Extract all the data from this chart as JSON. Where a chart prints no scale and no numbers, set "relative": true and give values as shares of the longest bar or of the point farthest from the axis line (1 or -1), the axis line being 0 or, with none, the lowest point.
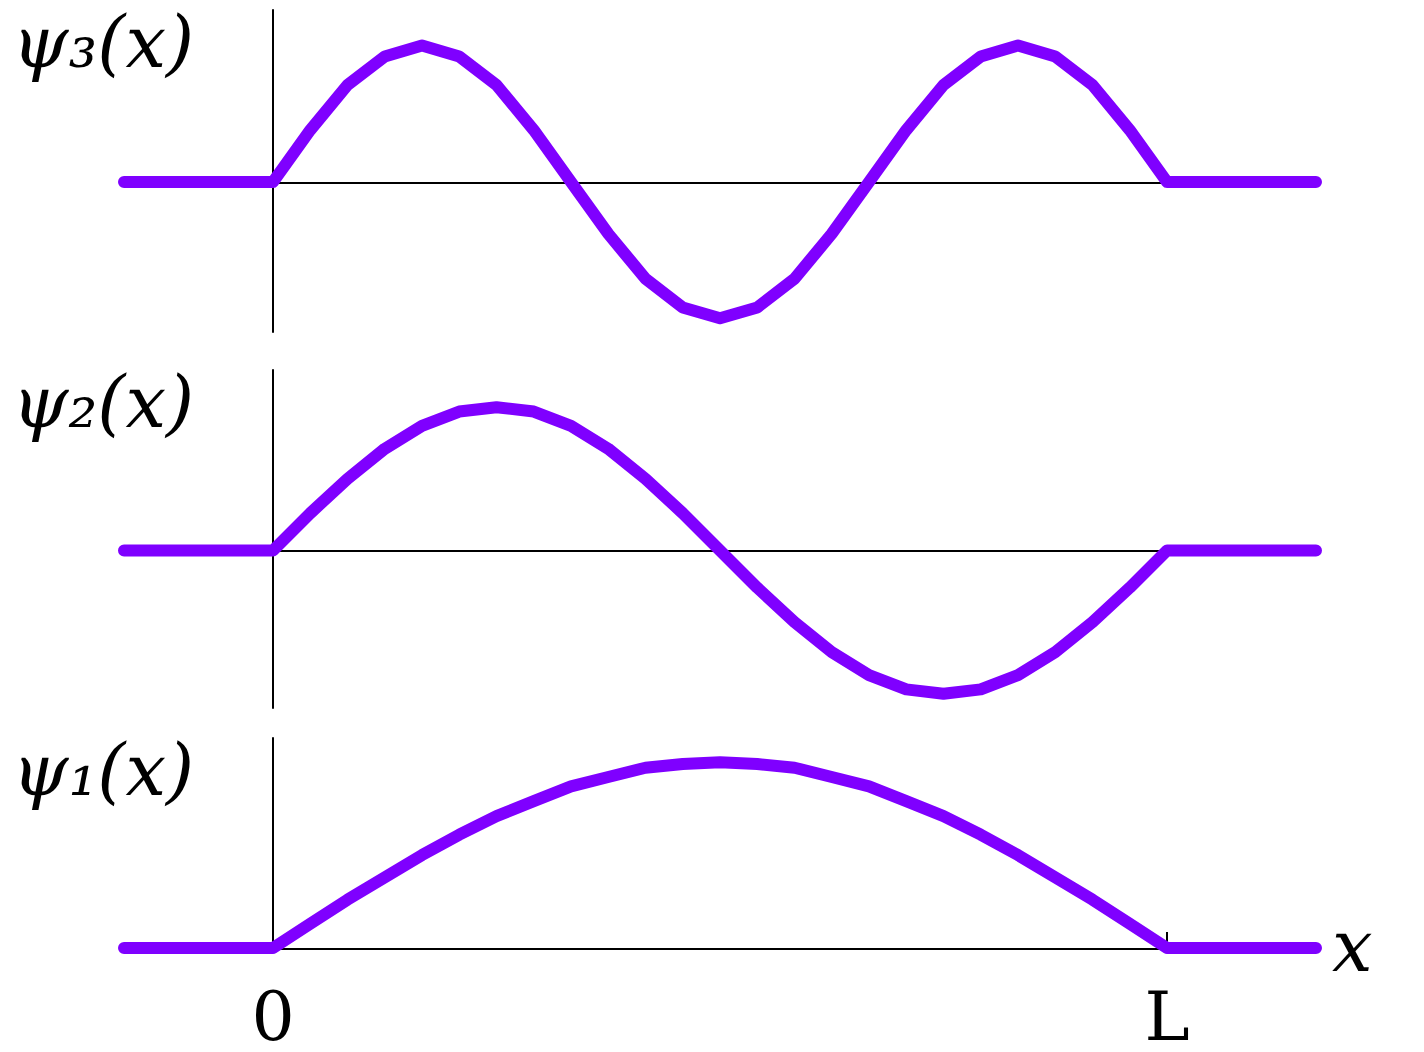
{
  "chart_data": [
    {
      "type": "line",
      "ylabel": "ψ₃(x)",
      "relative": true,
      "marker": "none",
      "line_style": "solid",
      "tick_labels": false,
      "categories": [
        null,
        null,
        null,
        null,
        null,
        null,
        null,
        null,
        null,
        null,
        null,
        null,
        null,
        null,
        null,
        null,
        null,
        null,
        null,
        null,
        null,
        null,
        null,
        null,
        null,
        null,
        null,
        null,
        null,
        null,
        null,
        null,
        null
      ],
      "series": [
        {
          "color": "#7f00ff",
          "values": [
            0,
            0,
            0,
            0,
            0,
            0.38,
            0.71,
            0.92,
            1,
            0.92,
            0.71,
            0.38,
            0,
            -0.38,
            -0.71,
            -0.92,
            -1,
            -0.92,
            -0.71,
            -0.38,
            0,
            0.38,
            0.71,
            0.92,
            1,
            0.92,
            0.71,
            0.38,
            0,
            0,
            0,
            0,
            0
          ]
        }
      ]
    },
    {
      "type": "line",
      "ylabel": "ψ₂(x)",
      "relative": true,
      "marker": "none",
      "line_style": "solid",
      "tick_labels": false,
      "categories": [
        null,
        null,
        null,
        null,
        null,
        null,
        null,
        null,
        null,
        null,
        null,
        null,
        null,
        null,
        null,
        null,
        null,
        null,
        null,
        null,
        null,
        null,
        null,
        null,
        null,
        null,
        null,
        null,
        null,
        null,
        null,
        null,
        null
      ],
      "series": [
        {
          "color": "#7f00ff",
          "values": [
            0,
            0,
            0,
            0,
            0,
            0.26,
            0.5,
            0.71,
            0.87,
            0.97,
            1,
            0.97,
            0.87,
            0.71,
            0.5,
            0.26,
            0,
            -0.26,
            -0.5,
            -0.71,
            -0.87,
            -0.97,
            -1,
            -0.97,
            -0.87,
            -0.71,
            -0.5,
            -0.26,
            0,
            0,
            0,
            0,
            0
          ]
        }
      ]
    },
    {
      "type": "line",
      "ylabel": "ψ₁(x)",
      "xlabel": "x",
      "relative": true,
      "marker": "none",
      "line_style": "solid",
      "tick_labels": "x",
      "categories": [
        null,
        null,
        null,
        null,
        "0",
        null,
        null,
        null,
        null,
        null,
        null,
        null,
        null,
        null,
        null,
        null,
        null,
        null,
        null,
        null,
        null,
        null,
        null,
        null,
        null,
        null,
        null,
        null,
        "L",
        null,
        null,
        null,
        null
      ],
      "series": [
        {
          "color": "#7f00ff",
          "values": [
            0,
            0,
            0,
            0,
            0,
            0.13,
            0.26,
            0.38,
            0.5,
            0.61,
            0.71,
            0.79,
            0.87,
            0.92,
            0.97,
            0.99,
            1,
            0.99,
            0.97,
            0.92,
            0.87,
            0.79,
            0.71,
            0.61,
            0.5,
            0.38,
            0.26,
            0.13,
            0,
            0,
            0,
            0,
            0
          ]
        }
      ]
    }
  ]
}
